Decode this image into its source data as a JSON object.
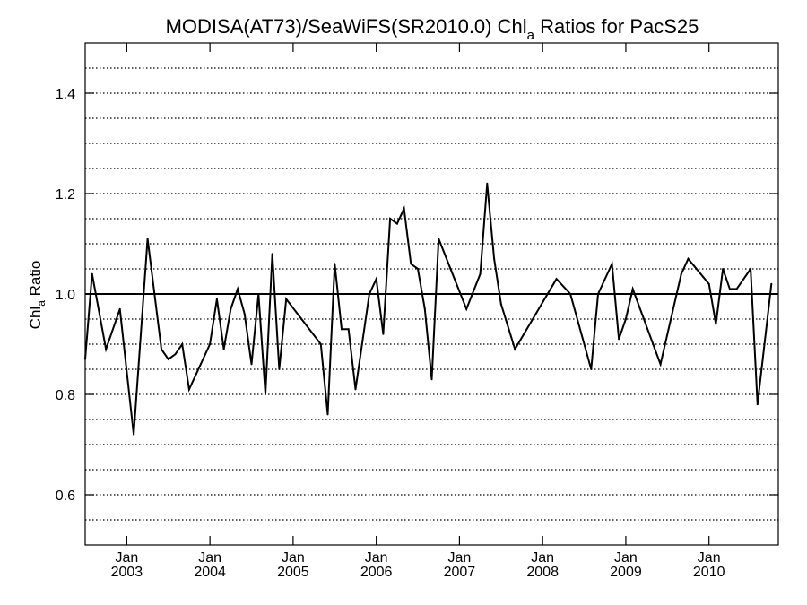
{
  "chart_data": {
    "type": "line",
    "title": {
      "prefix": "MODISA(AT73)/SeaWiFS(SR2010.0)  Chl",
      "subscript": "a",
      "suffix": " Ratios for PacS25"
    },
    "ylabel": {
      "main": "Chl",
      "subscript": "a",
      "suffix": " Ratio"
    },
    "ylim": [
      0.5,
      1.5
    ],
    "yticks": [
      0.6,
      0.8,
      1.0,
      1.2,
      1.4
    ],
    "ytick_labels": [
      "0.6",
      "0.8",
      "1.0",
      "1.2",
      "1.4"
    ],
    "grid": "dotted horizontal lines every 0.05",
    "reference_line": 1.0,
    "xlim": [
      "2002-07",
      "2010-11"
    ],
    "xticks": [
      {
        "month": "Jan",
        "year": "2003",
        "date": "2003-01"
      },
      {
        "month": "Jan",
        "year": "2004",
        "date": "2004-01"
      },
      {
        "month": "Jan",
        "year": "2005",
        "date": "2005-01"
      },
      {
        "month": "Jan",
        "year": "2006",
        "date": "2006-01"
      },
      {
        "month": "Jan",
        "year": "2007",
        "date": "2007-01"
      },
      {
        "month": "Jan",
        "year": "2008",
        "date": "2008-01"
      },
      {
        "month": "Jan",
        "year": "2009",
        "date": "2009-01"
      },
      {
        "month": "Jan",
        "year": "2010",
        "date": "2010-01"
      }
    ],
    "series": [
      {
        "color": "#000000",
        "points": [
          [
            "2002-07",
            0.87
          ],
          [
            "2002-08",
            1.04
          ],
          [
            "2002-10",
            0.89
          ],
          [
            "2002-12",
            0.97
          ],
          [
            "2003-02",
            0.72
          ],
          [
            "2003-04",
            1.11
          ],
          [
            "2003-06",
            0.89
          ],
          [
            "2003-07",
            0.87
          ],
          [
            "2003-08",
            0.88
          ],
          [
            "2003-09",
            0.9
          ],
          [
            "2003-10",
            0.81
          ],
          [
            "2003-11",
            0.84
          ],
          [
            "2004-01",
            0.9
          ],
          [
            "2004-02",
            0.99
          ],
          [
            "2004-03",
            0.89
          ],
          [
            "2004-04",
            0.97
          ],
          [
            "2004-05",
            1.01
          ],
          [
            "2004-06",
            0.96
          ],
          [
            "2004-07",
            0.86
          ],
          [
            "2004-08",
            1.0
          ],
          [
            "2004-09",
            0.8
          ],
          [
            "2004-10",
            1.08
          ],
          [
            "2004-11",
            0.85
          ],
          [
            "2004-12",
            0.99
          ],
          [
            "2005-05",
            0.9
          ],
          [
            "2005-06",
            0.76
          ],
          [
            "2005-07",
            1.06
          ],
          [
            "2005-08",
            0.93
          ],
          [
            "2005-09",
            0.93
          ],
          [
            "2005-10",
            0.81
          ],
          [
            "2005-12",
            1.0
          ],
          [
            "2006-01",
            1.03
          ],
          [
            "2006-02",
            0.92
          ],
          [
            "2006-03",
            1.15
          ],
          [
            "2006-04",
            1.14
          ],
          [
            "2006-05",
            1.17
          ],
          [
            "2006-06",
            1.06
          ],
          [
            "2006-07",
            1.05
          ],
          [
            "2006-08",
            0.97
          ],
          [
            "2006-09",
            0.83
          ],
          [
            "2006-10",
            1.11
          ],
          [
            "2007-02",
            0.97
          ],
          [
            "2007-04",
            1.04
          ],
          [
            "2007-05",
            1.22
          ],
          [
            "2007-06",
            1.07
          ],
          [
            "2007-07",
            0.98
          ],
          [
            "2007-09",
            0.89
          ],
          [
            "2008-03",
            1.03
          ],
          [
            "2008-05",
            1.0
          ],
          [
            "2008-08",
            0.85
          ],
          [
            "2008-09",
            1.0
          ],
          [
            "2008-11",
            1.06
          ],
          [
            "2008-12",
            0.91
          ],
          [
            "2009-01",
            0.95
          ],
          [
            "2009-02",
            1.01
          ],
          [
            "2009-06",
            0.86
          ],
          [
            "2009-09",
            1.04
          ],
          [
            "2009-10",
            1.07
          ],
          [
            "2010-01",
            1.02
          ],
          [
            "2010-02",
            0.94
          ],
          [
            "2010-03",
            1.05
          ],
          [
            "2010-04",
            1.01
          ],
          [
            "2010-05",
            1.01
          ],
          [
            "2010-07",
            1.05
          ],
          [
            "2010-08",
            0.78
          ],
          [
            "2010-10",
            1.02
          ]
        ]
      }
    ]
  }
}
